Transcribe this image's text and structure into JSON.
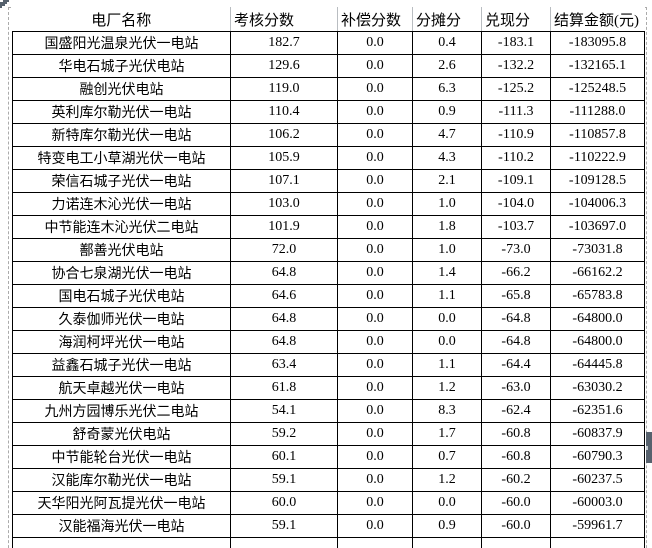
{
  "table": {
    "columns": [
      "电厂名称",
      "考核分数",
      "补偿分数",
      "分摊分",
      "兑现分",
      "结算金额(元)"
    ],
    "rows": [
      [
        "国盛阳光温泉光伏一电站",
        "182.7",
        "0.0",
        "0.4",
        "-183.1",
        "-183095.8"
      ],
      [
        "华电石城子光伏电站",
        "129.6",
        "0.0",
        "2.6",
        "-132.2",
        "-132165.1"
      ],
      [
        "融创光伏电站",
        "119.0",
        "0.0",
        "6.3",
        "-125.2",
        "-125248.5"
      ],
      [
        "英利库尔勒光伏一电站",
        "110.4",
        "0.0",
        "0.9",
        "-111.3",
        "-111288.0"
      ],
      [
        "新特库尔勒光伏一电站",
        "106.2",
        "0.0",
        "4.7",
        "-110.9",
        "-110857.8"
      ],
      [
        "特变电工小草湖光伏一电站",
        "105.9",
        "0.0",
        "4.3",
        "-110.2",
        "-110222.9"
      ],
      [
        "荣信石城子光伏一电站",
        "107.1",
        "0.0",
        "2.1",
        "-109.1",
        "-109128.5"
      ],
      [
        "力诺连木沁光伏一电站",
        "103.0",
        "0.0",
        "1.0",
        "-104.0",
        "-104006.3"
      ],
      [
        "中节能连木沁光伏二电站",
        "101.9",
        "0.0",
        "1.8",
        "-103.7",
        "-103697.0"
      ],
      [
        "鄯善光伏电站",
        "72.0",
        "0.0",
        "1.0",
        "-73.0",
        "-73031.8"
      ],
      [
        "协合七泉湖光伏一电站",
        "64.8",
        "0.0",
        "1.4",
        "-66.2",
        "-66162.2"
      ],
      [
        "国电石城子光伏电站",
        "64.6",
        "0.0",
        "1.1",
        "-65.8",
        "-65783.8"
      ],
      [
        "久泰伽师光伏一电站",
        "64.8",
        "0.0",
        "0.0",
        "-64.8",
        "-64800.0"
      ],
      [
        "海润柯坪光伏一电站",
        "64.8",
        "0.0",
        "0.0",
        "-64.8",
        "-64800.0"
      ],
      [
        "益鑫石城子光伏一电站",
        "63.4",
        "0.0",
        "1.1",
        "-64.4",
        "-64445.8"
      ],
      [
        "航天卓越光伏一电站",
        "61.8",
        "0.0",
        "1.2",
        "-63.0",
        "-63030.2"
      ],
      [
        "九州方园博乐光伏二电站",
        "54.1",
        "0.0",
        "8.3",
        "-62.4",
        "-62351.6"
      ],
      [
        "舒奇蒙光伏电站",
        "59.2",
        "0.0",
        "1.7",
        "-60.8",
        "-60837.9"
      ],
      [
        "中节能轮台光伏一电站",
        "60.1",
        "0.0",
        "0.7",
        "-60.8",
        "-60790.3"
      ],
      [
        "汉能库尔勒光伏一电站",
        "59.1",
        "0.0",
        "1.2",
        "-60.2",
        "-60237.5"
      ],
      [
        "天华阳光阿瓦提光伏一电站",
        "60.0",
        "0.0",
        "0.0",
        "-60.0",
        "-60003.0"
      ],
      [
        "汉能福海光伏一电站",
        "59.1",
        "0.0",
        "0.9",
        "-60.0",
        "-59961.7"
      ]
    ]
  },
  "colors": {
    "cell_border": "#000000",
    "header_gridline": "#b9bdc1",
    "marquee_dash": "#ababab",
    "artifact_slate": "#56616d",
    "background": "#ffffff"
  }
}
